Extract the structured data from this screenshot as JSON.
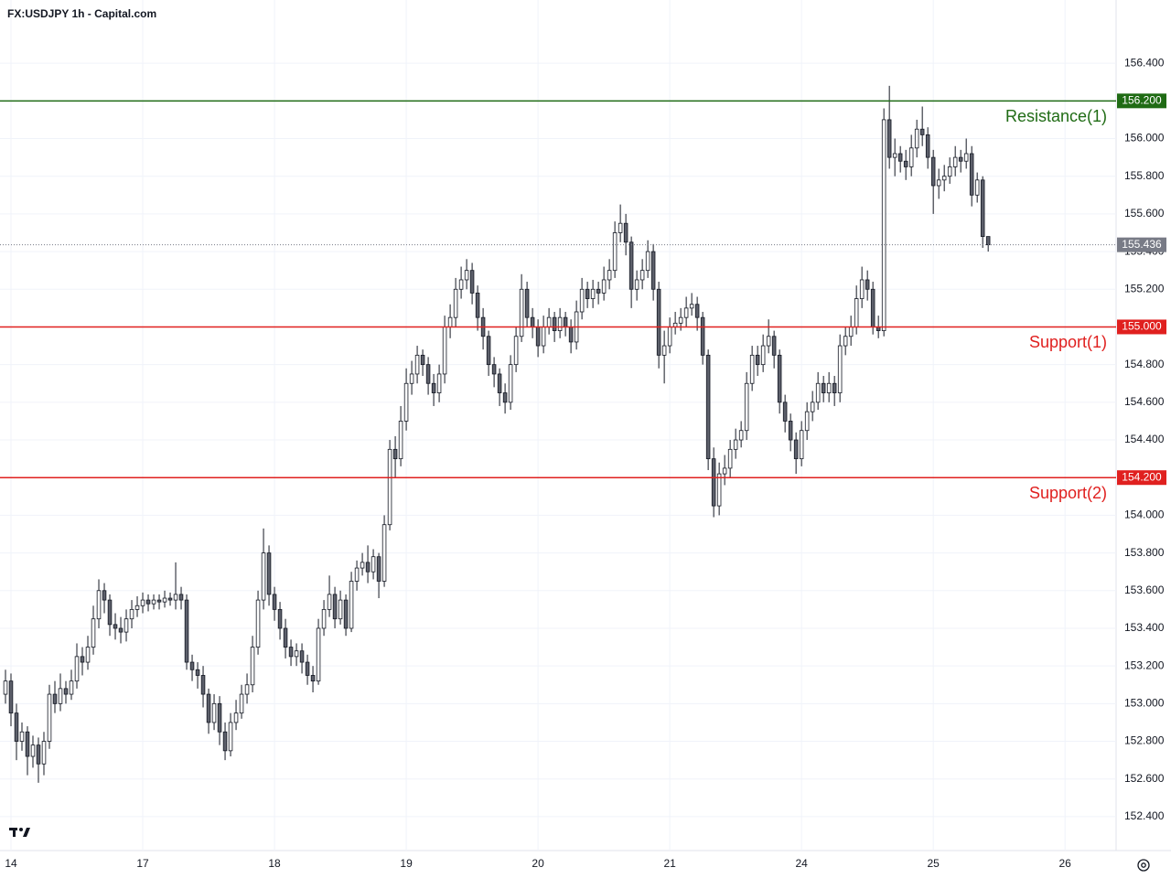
{
  "chart_data": {
    "type": "candlestick",
    "title": "FX:USDJPY 1h - Capital.com",
    "x": [
      -1,
      0,
      1,
      2,
      3,
      4,
      5,
      6,
      7,
      8,
      9,
      10,
      11,
      12,
      13,
      14,
      15,
      16,
      17,
      18,
      19,
      20,
      21,
      22,
      23,
      24,
      25,
      26,
      27,
      28,
      29,
      30,
      31,
      32,
      33,
      34,
      35,
      36,
      37,
      38,
      39,
      40,
      41,
      42,
      43,
      44,
      45,
      46,
      47,
      48,
      49,
      50,
      51,
      52,
      53,
      54,
      55,
      56,
      57,
      58,
      59,
      60,
      61,
      62,
      63,
      64,
      65,
      66,
      67,
      68,
      69,
      70,
      71,
      72,
      73,
      74,
      75,
      76,
      77,
      78,
      79,
      80,
      81,
      82,
      83,
      84,
      85,
      86,
      87,
      88,
      89,
      90,
      91,
      92,
      93,
      94,
      95,
      96,
      97,
      98,
      99,
      100,
      101,
      102,
      103,
      104,
      105,
      106,
      107,
      108,
      109,
      110,
      111,
      112,
      113,
      114,
      115,
      116,
      117,
      118,
      119,
      120,
      121,
      122,
      123,
      124,
      125,
      126,
      127,
      128,
      129,
      130,
      131,
      132,
      133,
      134,
      135,
      136,
      137,
      138,
      139,
      140,
      141,
      142,
      143,
      144,
      145,
      146,
      147,
      148,
      149,
      150,
      151,
      152,
      153,
      154,
      155,
      156,
      157,
      158,
      159,
      160,
      161,
      162,
      163,
      164,
      165,
      166,
      167,
      168,
      169,
      170,
      171,
      172,
      173,
      174,
      175,
      176,
      177,
      178
    ],
    "open": [
      153.05,
      153.12,
      152.95,
      152.8,
      152.85,
      152.72,
      152.78,
      152.68,
      152.8,
      153.05,
      153.0,
      153.08,
      153.05,
      153.12,
      153.25,
      153.22,
      153.3,
      153.45,
      153.6,
      153.55,
      153.42,
      153.4,
      153.38,
      153.45,
      153.5,
      153.52,
      153.55,
      153.53,
      153.55,
      153.54,
      153.56,
      153.55,
      153.58,
      153.55,
      153.22,
      153.18,
      153.15,
      153.05,
      152.9,
      153.0,
      152.85,
      152.75,
      152.9,
      152.95,
      153.05,
      153.1,
      153.3,
      153.55,
      153.8,
      153.58,
      153.5,
      153.4,
      153.3,
      153.25,
      153.28,
      153.22,
      153.15,
      153.12,
      153.4,
      153.5,
      153.58,
      153.45,
      153.55,
      153.4,
      153.65,
      153.72,
      153.75,
      153.7,
      153.78,
      153.65,
      153.95,
      154.35,
      154.3,
      154.5,
      154.7,
      154.75,
      154.85,
      154.8,
      154.7,
      154.65,
      154.75,
      155.0,
      155.05,
      155.2,
      155.25,
      155.3,
      155.18,
      155.05,
      154.95,
      154.8,
      154.75,
      154.65,
      154.6,
      154.8,
      154.95,
      155.2,
      155.05,
      155.0,
      154.9,
      155.0,
      155.05,
      154.98,
      155.05,
      155.0,
      154.92,
      155.08,
      155.2,
      155.15,
      155.2,
      155.18,
      155.25,
      155.3,
      155.5,
      155.55,
      155.45,
      155.2,
      155.25,
      155.3,
      155.4,
      155.2,
      154.85,
      154.9,
      155.0,
      155.02,
      155.05,
      155.1,
      155.12,
      155.05,
      154.85,
      154.3,
      154.05,
      154.22,
      154.25,
      154.35,
      154.4,
      154.45,
      154.7,
      154.85,
      154.8,
      154.9,
      154.95,
      154.85,
      154.6,
      154.5,
      154.4,
      154.3,
      154.45,
      154.55,
      154.6,
      154.7,
      154.65,
      154.7,
      154.65,
      154.9,
      154.95,
      155.0,
      155.15,
      155.25,
      155.2,
      155.0,
      154.98,
      156.1,
      155.9,
      155.92,
      155.88,
      155.85,
      155.95,
      156.05,
      156.02,
      155.9,
      155.75,
      155.78,
      155.8,
      155.85,
      155.9,
      155.88,
      155.92,
      155.7,
      155.78,
      155.48
    ],
    "high": [
      153.18,
      153.16,
      153.0,
      152.9,
      152.88,
      152.83,
      152.82,
      152.85,
      153.1,
      153.12,
      153.16,
      153.12,
      153.18,
      153.32,
      153.3,
      153.36,
      153.52,
      153.66,
      153.64,
      153.58,
      153.48,
      153.46,
      153.5,
      153.55,
      153.57,
      153.59,
      153.58,
      153.58,
      153.58,
      153.6,
      153.59,
      153.75,
      153.62,
      153.58,
      153.26,
      153.22,
      153.2,
      153.08,
      153.05,
      153.04,
      152.9,
      152.95,
      153.02,
      153.1,
      153.16,
      153.36,
      153.6,
      153.93,
      153.84,
      153.62,
      153.54,
      153.45,
      153.34,
      153.32,
      153.32,
      153.26,
      153.2,
      153.45,
      153.55,
      153.68,
      153.62,
      153.6,
      153.58,
      153.7,
      153.76,
      153.8,
      153.84,
      153.82,
      153.8,
      154.0,
      154.4,
      154.42,
      154.58,
      154.78,
      154.82,
      154.9,
      154.88,
      154.84,
      154.75,
      154.8,
      155.06,
      155.12,
      155.26,
      155.32,
      155.36,
      155.34,
      155.22,
      155.1,
      154.98,
      154.84,
      154.78,
      154.7,
      154.85,
      155.0,
      155.28,
      155.24,
      155.1,
      155.04,
      155.06,
      155.1,
      155.08,
      155.1,
      155.08,
      155.04,
      155.14,
      155.26,
      155.24,
      155.25,
      155.24,
      155.32,
      155.36,
      155.56,
      155.65,
      155.6,
      155.48,
      155.3,
      155.36,
      155.46,
      155.44,
      155.24,
      154.98,
      155.05,
      155.08,
      155.1,
      155.16,
      155.18,
      155.16,
      155.08,
      154.88,
      154.36,
      154.28,
      154.32,
      154.4,
      154.46,
      154.5,
      154.76,
      154.9,
      154.9,
      154.96,
      155.04,
      154.98,
      154.88,
      154.64,
      154.54,
      154.44,
      154.5,
      154.6,
      154.66,
      154.76,
      154.74,
      154.76,
      154.74,
      154.96,
      155.0,
      155.06,
      155.22,
      155.32,
      155.3,
      155.24,
      155.06,
      156.16,
      156.28,
      156.0,
      155.96,
      155.94,
      156.02,
      156.1,
      156.17,
      156.06,
      155.94,
      155.84,
      155.86,
      155.9,
      155.96,
      155.94,
      156.0,
      155.96,
      155.82,
      155.8,
      155.48
    ],
    "low": [
      153.0,
      152.88,
      152.7,
      152.75,
      152.62,
      152.66,
      152.58,
      152.62,
      152.76,
      152.95,
      152.96,
      153.0,
      153.02,
      153.08,
      153.15,
      153.18,
      153.26,
      153.4,
      153.48,
      153.36,
      153.34,
      153.32,
      153.33,
      153.4,
      153.46,
      153.48,
      153.49,
      153.5,
      153.5,
      153.51,
      153.52,
      153.5,
      153.5,
      153.18,
      153.12,
      153.08,
      152.98,
      152.84,
      152.86,
      152.78,
      152.7,
      152.72,
      152.86,
      152.92,
      153.0,
      153.06,
      153.26,
      153.5,
      153.52,
      153.44,
      153.34,
      153.24,
      153.2,
      153.2,
      153.16,
      153.1,
      153.06,
      153.1,
      153.36,
      153.46,
      153.4,
      153.42,
      153.36,
      153.38,
      153.6,
      153.68,
      153.64,
      153.66,
      153.56,
      153.62,
      153.92,
      154.2,
      154.26,
      154.45,
      154.64,
      154.7,
      154.74,
      154.64,
      154.58,
      154.6,
      154.7,
      154.94,
      155.0,
      155.15,
      155.2,
      155.12,
      154.98,
      154.88,
      154.74,
      154.68,
      154.58,
      154.54,
      154.56,
      154.76,
      154.92,
      155.0,
      154.94,
      154.84,
      154.86,
      154.96,
      154.92,
      154.94,
      154.95,
      154.86,
      154.88,
      155.04,
      155.1,
      155.1,
      155.12,
      155.14,
      155.2,
      155.26,
      155.45,
      155.38,
      155.1,
      155.14,
      155.2,
      155.26,
      155.14,
      154.78,
      154.7,
      154.86,
      154.96,
      154.98,
      155.0,
      155.06,
      154.98,
      154.8,
      154.24,
      153.99,
      154.0,
      154.16,
      154.2,
      154.3,
      154.36,
      154.4,
      154.66,
      154.74,
      154.76,
      154.86,
      154.78,
      154.54,
      154.44,
      154.34,
      154.22,
      154.26,
      154.4,
      154.5,
      154.56,
      154.6,
      154.6,
      154.58,
      154.6,
      154.85,
      154.9,
      154.96,
      155.1,
      155.14,
      154.96,
      154.94,
      154.95,
      155.84,
      155.8,
      155.82,
      155.78,
      155.8,
      155.9,
      155.96,
      155.84,
      155.6,
      155.68,
      155.72,
      155.76,
      155.8,
      155.82,
      155.84,
      155.64,
      155.66,
      155.42,
      155.4
    ],
    "close": [
      153.12,
      152.95,
      152.8,
      152.85,
      152.72,
      152.78,
      152.68,
      152.8,
      153.05,
      153.0,
      153.08,
      153.05,
      153.12,
      153.25,
      153.22,
      153.3,
      153.45,
      153.6,
      153.55,
      153.42,
      153.4,
      153.38,
      153.45,
      153.5,
      153.52,
      153.55,
      153.53,
      153.55,
      153.54,
      153.56,
      153.55,
      153.58,
      153.55,
      153.22,
      153.18,
      153.15,
      153.05,
      152.9,
      153.0,
      152.85,
      152.75,
      152.9,
      152.95,
      153.05,
      153.1,
      153.3,
      153.55,
      153.8,
      153.58,
      153.5,
      153.4,
      153.3,
      153.25,
      153.28,
      153.22,
      153.15,
      153.12,
      153.4,
      153.5,
      153.58,
      153.45,
      153.55,
      153.4,
      153.65,
      153.72,
      153.75,
      153.7,
      153.78,
      153.65,
      153.95,
      154.35,
      154.3,
      154.5,
      154.7,
      154.75,
      154.85,
      154.8,
      154.7,
      154.65,
      154.75,
      155.0,
      155.05,
      155.2,
      155.25,
      155.3,
      155.18,
      155.05,
      154.95,
      154.8,
      154.75,
      154.65,
      154.6,
      154.8,
      154.95,
      155.2,
      155.05,
      155.0,
      154.9,
      155.0,
      155.05,
      154.98,
      155.05,
      155.0,
      154.92,
      155.08,
      155.2,
      155.15,
      155.2,
      155.18,
      155.25,
      155.3,
      155.5,
      155.55,
      155.45,
      155.2,
      155.25,
      155.3,
      155.4,
      155.2,
      154.85,
      154.9,
      155.0,
      155.02,
      155.05,
      155.1,
      155.12,
      155.05,
      154.85,
      154.3,
      154.05,
      154.22,
      154.25,
      154.35,
      154.4,
      154.45,
      154.7,
      154.85,
      154.8,
      154.9,
      154.95,
      154.85,
      154.6,
      154.5,
      154.4,
      154.3,
      154.45,
      154.55,
      154.6,
      154.7,
      154.65,
      154.7,
      154.65,
      154.9,
      154.95,
      155.0,
      155.15,
      155.25,
      155.2,
      155.0,
      154.98,
      156.1,
      155.9,
      155.92,
      155.88,
      155.85,
      155.95,
      156.05,
      156.02,
      155.9,
      155.75,
      155.78,
      155.8,
      155.85,
      155.9,
      155.88,
      155.92,
      155.7,
      155.78,
      155.48,
      155.436
    ],
    "up_color": "#ffffff",
    "down_color": "#5d606b",
    "xlim": [
      -2,
      201.3
    ],
    "xticks": [
      {
        "value": 0,
        "label": "14"
      },
      {
        "value": 24,
        "label": "17"
      },
      {
        "value": 48,
        "label": "18"
      },
      {
        "value": 72,
        "label": "19"
      },
      {
        "value": 96,
        "label": "20"
      },
      {
        "value": 120,
        "label": "21"
      },
      {
        "value": 144,
        "label": "24"
      },
      {
        "value": 168,
        "label": "25"
      },
      {
        "value": 192,
        "label": "26"
      }
    ],
    "ylim": [
      152.22,
      156.59
    ],
    "yticks": [
      {
        "value": 152.4,
        "label": "152.400"
      },
      {
        "value": 152.6,
        "label": "152.600"
      },
      {
        "value": 152.8,
        "label": "152.800"
      },
      {
        "value": 153.0,
        "label": "153.000"
      },
      {
        "value": 153.2,
        "label": "153.200"
      },
      {
        "value": 153.4,
        "label": "153.400"
      },
      {
        "value": 153.6,
        "label": "153.600"
      },
      {
        "value": 153.8,
        "label": "153.800"
      },
      {
        "value": 154.0,
        "label": "154.000"
      },
      {
        "value": 154.2,
        "label": "154.200"
      },
      {
        "value": 154.4,
        "label": "154.400"
      },
      {
        "value": 154.6,
        "label": "154.600"
      },
      {
        "value": 154.8,
        "label": "154.800"
      },
      {
        "value": 155.0,
        "label": "155.000"
      },
      {
        "value": 155.2,
        "label": "155.200"
      },
      {
        "value": 155.4,
        "label": "155.400"
      },
      {
        "value": 155.6,
        "label": "155.600"
      },
      {
        "value": 155.8,
        "label": "155.800"
      },
      {
        "value": 156.0,
        "label": "156.000"
      },
      {
        "value": 156.2,
        "label": "156.200"
      },
      {
        "value": 156.4,
        "label": "156.400"
      }
    ],
    "grid": true,
    "levels": [
      {
        "name": "Resistance(1)",
        "value": 156.2,
        "label": "156.200",
        "color": "#1f6b14"
      },
      {
        "name": "Support(1)",
        "value": 155.0,
        "label": "155.000",
        "color": "#e0201f"
      },
      {
        "name": "Support(2)",
        "value": 154.2,
        "label": "154.200",
        "color": "#e0201f"
      }
    ],
    "last_price": {
      "value": 155.436,
      "label": "155.436",
      "color": "#787b86"
    }
  }
}
